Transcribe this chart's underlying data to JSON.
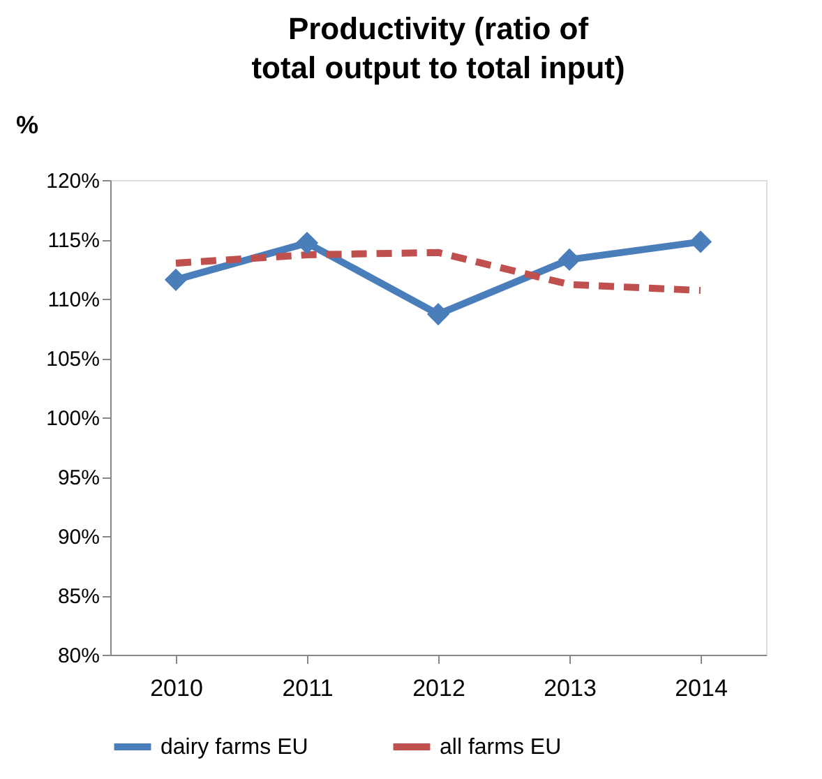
{
  "chart_data": {
    "type": "line",
    "title": "Productivity (ratio of total output to total input)",
    "ylabel": "%",
    "categories": [
      "2010",
      "2011",
      "2012",
      "2013",
      "2014"
    ],
    "series": [
      {
        "name": "dairy farms EU",
        "color": "#4a7ebb",
        "values": [
          111.6,
          114.7,
          108.7,
          113.3,
          114.8
        ],
        "marker": "diamond",
        "line_style": "solid"
      },
      {
        "name": "all farms EU",
        "color": "#c0504d",
        "values": [
          113.0,
          113.7,
          113.9,
          111.2,
          110.7
        ],
        "marker": "none",
        "line_style": "dashed"
      }
    ],
    "ylim": [
      80,
      120
    ],
    "yticks": [
      {
        "value": 80,
        "label": "80%"
      },
      {
        "value": 85,
        "label": "85%"
      },
      {
        "value": 90,
        "label": "90%"
      },
      {
        "value": 95,
        "label": "95%"
      },
      {
        "value": 100,
        "label": "100%"
      },
      {
        "value": 105,
        "label": "105%"
      },
      {
        "value": 110,
        "label": "110%"
      },
      {
        "value": 115,
        "label": "115%"
      },
      {
        "value": 120,
        "label": "120%"
      }
    ],
    "grid": false,
    "legend": "bottom"
  }
}
